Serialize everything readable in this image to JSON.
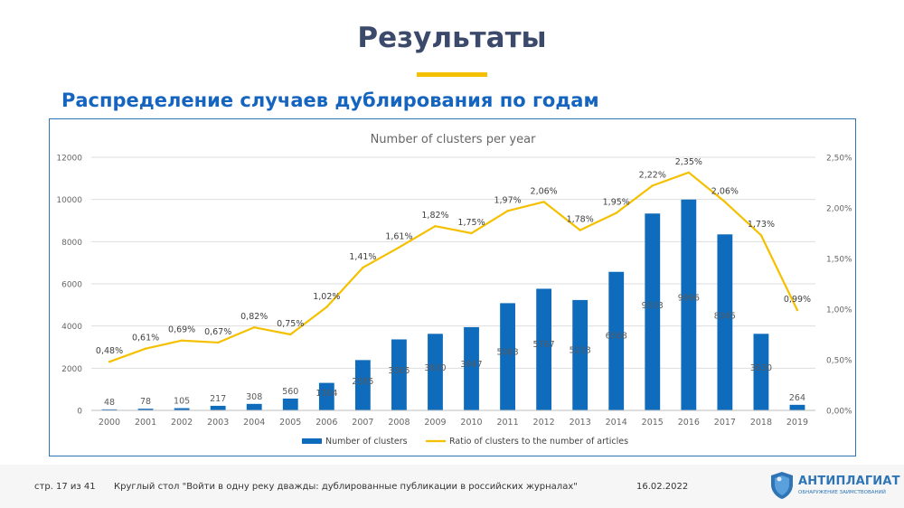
{
  "slide": {
    "title": "Результаты",
    "subtitle": "Распределение случаев дублирования по годам"
  },
  "chart_data": {
    "type": "bar",
    "title": "Number of clusters per year",
    "categories": [
      "2000",
      "2001",
      "2002",
      "2003",
      "2004",
      "2005",
      "2006",
      "2007",
      "2008",
      "2009",
      "2010",
      "2011",
      "2012",
      "2013",
      "2014",
      "2015",
      "2016",
      "2017",
      "2018",
      "2019"
    ],
    "series": [
      {
        "name": "Number of clusters",
        "type": "bar",
        "axis": "left",
        "color": "#0f6cbd",
        "values": [
          48,
          78,
          105,
          217,
          308,
          560,
          1304,
          2385,
          3365,
          3630,
          3947,
          5083,
          5767,
          5233,
          6568,
          9333,
          9996,
          8345,
          3630,
          264
        ],
        "labels": [
          "48",
          "78",
          "105",
          "217",
          "308",
          "560",
          "1304",
          "2385",
          "3365",
          "3630",
          "3947",
          "5083",
          "5767",
          "5233",
          "6568",
          "9333",
          "9996",
          "8345",
          "3630",
          "264"
        ]
      },
      {
        "name": "Ratio of clusters to the number of articles",
        "type": "line",
        "axis": "right",
        "color": "#f5c000",
        "values": [
          0.48,
          0.61,
          0.69,
          0.67,
          0.82,
          0.75,
          1.02,
          1.41,
          1.61,
          1.82,
          1.75,
          1.97,
          2.06,
          1.78,
          1.95,
          2.22,
          2.35,
          2.06,
          1.73,
          0.99
        ],
        "labels": [
          "0,48%",
          "0,61%",
          "0,69%",
          "0,67%",
          "0,82%",
          "0,75%",
          "1,02%",
          "1,41%",
          "1,61%",
          "1,82%",
          "1,75%",
          "1,97%",
          "2,06%",
          "1,78%",
          "1,95%",
          "2,22%",
          "2,35%",
          "2,06%",
          "1,73%",
          "0,99%"
        ]
      }
    ],
    "y_left": {
      "range": [
        0,
        12000
      ],
      "ticks": [
        "0",
        "2000",
        "4000",
        "6000",
        "8000",
        "10000",
        "12000"
      ]
    },
    "y_right": {
      "range": [
        0,
        2.5
      ],
      "ticks": [
        "0,00%",
        "0,50%",
        "1,00%",
        "1,50%",
        "2,00%",
        "2,50%"
      ]
    },
    "grid": true,
    "legend": "bottom"
  },
  "footer": {
    "page": "стр. 17  из   41",
    "event": "Круглый стол \"Войти в одну реку дважды: дублированные публикации в российских журналах\"",
    "date": "16.02.2022",
    "logo_name": "АНТИПЛАГИАТ",
    "logo_tagline": "ОБНАРУЖЕНИЕ ЗАИМСТВОВАНИЙ",
    "logo_color": "#2f75b5"
  }
}
